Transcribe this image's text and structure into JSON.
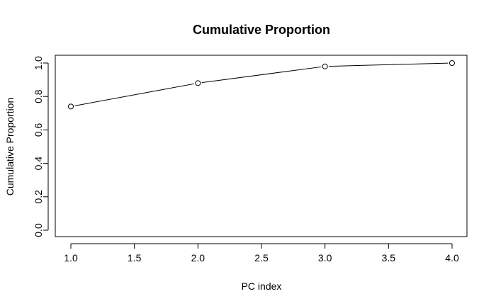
{
  "chart_data": {
    "type": "line",
    "title": "Cumulative Proportion",
    "xlabel": "PC index",
    "ylabel": "Cumulative Proportion",
    "x": [
      1,
      2,
      3,
      4
    ],
    "series": [
      {
        "values": [
          0.74,
          0.88,
          0.98,
          1.0
        ]
      }
    ],
    "xlim": [
      1,
      4
    ],
    "ylim": [
      0,
      1
    ],
    "x_ticks": [
      "1.0",
      "1.5",
      "2.0",
      "2.5",
      "3.0",
      "3.5",
      "4.0"
    ],
    "y_ticks": [
      "0.0",
      "0.2",
      "0.4",
      "0.6",
      "0.8",
      "1.0"
    ],
    "markers": "open-circle",
    "grid": false,
    "legend": "none"
  }
}
